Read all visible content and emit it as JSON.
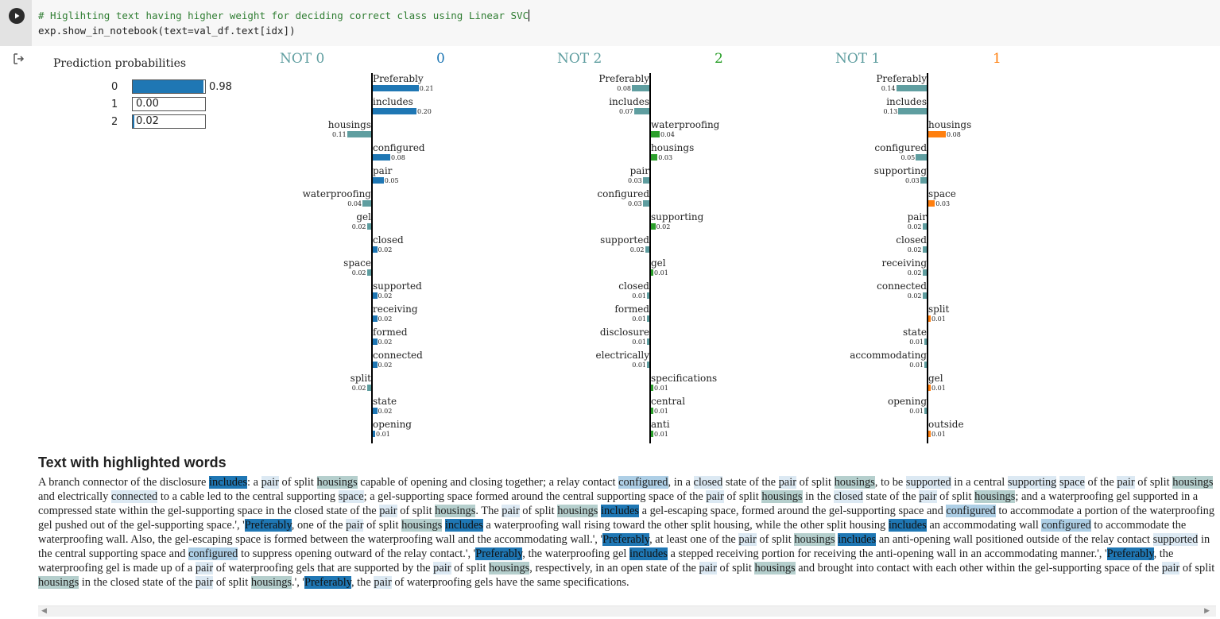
{
  "cell": {
    "code_line1": "# Higlihting text having higher weight for deciding correct class using Linear SVC",
    "code_line2": "exp.show_in_notebook(text=val_df.text[idx])"
  },
  "prediction": {
    "title": "Prediction probabilities",
    "rows": [
      {
        "label": "0",
        "value": 0.98,
        "text": "0.98"
      },
      {
        "label": "1",
        "value": 0.0,
        "text": "0.00"
      },
      {
        "label": "2",
        "value": 0.02,
        "text": "0.02"
      }
    ],
    "bar_color": "#1f77b4"
  },
  "panels": [
    {
      "not_label": "NOT 0",
      "class_label": "0",
      "class_color": "#1f77b4",
      "features": [
        {
          "word": "Preferably",
          "value": "0.21",
          "side": "right"
        },
        {
          "word": "includes",
          "value": "0.20",
          "side": "right"
        },
        {
          "word": "housings",
          "value": "0.11",
          "side": "left"
        },
        {
          "word": "configured",
          "value": "0.08",
          "side": "right"
        },
        {
          "word": "pair",
          "value": "0.05",
          "side": "right"
        },
        {
          "word": "waterproofing",
          "value": "0.04",
          "side": "left"
        },
        {
          "word": "gel",
          "value": "0.02",
          "side": "left"
        },
        {
          "word": "closed",
          "value": "0.02",
          "side": "right"
        },
        {
          "word": "space",
          "value": "0.02",
          "side": "left"
        },
        {
          "word": "supported",
          "value": "0.02",
          "side": "right"
        },
        {
          "word": "receiving",
          "value": "0.02",
          "side": "right"
        },
        {
          "word": "formed",
          "value": "0.02",
          "side": "right"
        },
        {
          "word": "connected",
          "value": "0.02",
          "side": "right"
        },
        {
          "word": "split",
          "value": "0.02",
          "side": "left"
        },
        {
          "word": "state",
          "value": "0.02",
          "side": "right"
        },
        {
          "word": "opening",
          "value": "0.01",
          "side": "right"
        }
      ]
    },
    {
      "not_label": "NOT 2",
      "class_label": "2",
      "class_color": "#2ca02c",
      "features": [
        {
          "word": "Preferably",
          "value": "0.08",
          "side": "left"
        },
        {
          "word": "includes",
          "value": "0.07",
          "side": "left"
        },
        {
          "word": "waterproofing",
          "value": "0.04",
          "side": "right"
        },
        {
          "word": "housings",
          "value": "0.03",
          "side": "right"
        },
        {
          "word": "pair",
          "value": "0.03",
          "side": "left"
        },
        {
          "word": "configured",
          "value": "0.03",
          "side": "left"
        },
        {
          "word": "supporting",
          "value": "0.02",
          "side": "right"
        },
        {
          "word": "supported",
          "value": "0.02",
          "side": "left"
        },
        {
          "word": "gel",
          "value": "0.01",
          "side": "right"
        },
        {
          "word": "closed",
          "value": "0.01",
          "side": "left"
        },
        {
          "word": "formed",
          "value": "0.01",
          "side": "left"
        },
        {
          "word": "disclosure",
          "value": "0.01",
          "side": "left"
        },
        {
          "word": "electrically",
          "value": "0.01",
          "side": "left"
        },
        {
          "word": "specifications",
          "value": "0.01",
          "side": "right"
        },
        {
          "word": "central",
          "value": "0.01",
          "side": "right"
        },
        {
          "word": "anti",
          "value": "0.01",
          "side": "right"
        }
      ]
    },
    {
      "not_label": "NOT 1",
      "class_label": "1",
      "class_color": "#ff7f0e",
      "features": [
        {
          "word": "Preferably",
          "value": "0.14",
          "side": "left"
        },
        {
          "word": "includes",
          "value": "0.13",
          "side": "left"
        },
        {
          "word": "housings",
          "value": "0.08",
          "side": "right"
        },
        {
          "word": "configured",
          "value": "0.05",
          "side": "left"
        },
        {
          "word": "supporting",
          "value": "0.03",
          "side": "left"
        },
        {
          "word": "space",
          "value": "0.03",
          "side": "right"
        },
        {
          "word": "pair",
          "value": "0.02",
          "side": "left"
        },
        {
          "word": "closed",
          "value": "0.02",
          "side": "left"
        },
        {
          "word": "receiving",
          "value": "0.02",
          "side": "left"
        },
        {
          "word": "connected",
          "value": "0.02",
          "side": "left"
        },
        {
          "word": "split",
          "value": "0.01",
          "side": "right"
        },
        {
          "word": "state",
          "value": "0.01",
          "side": "left"
        },
        {
          "word": "accommodating",
          "value": "0.01",
          "side": "left"
        },
        {
          "word": "gel",
          "value": "0.01",
          "side": "right"
        },
        {
          "word": "opening",
          "value": "0.01",
          "side": "left"
        },
        {
          "word": "outside",
          "value": "0.01",
          "side": "right"
        }
      ]
    }
  ],
  "not_color": "#5f9ea0",
  "highlight": {
    "title": "Text with highlighted words"
  }
}
